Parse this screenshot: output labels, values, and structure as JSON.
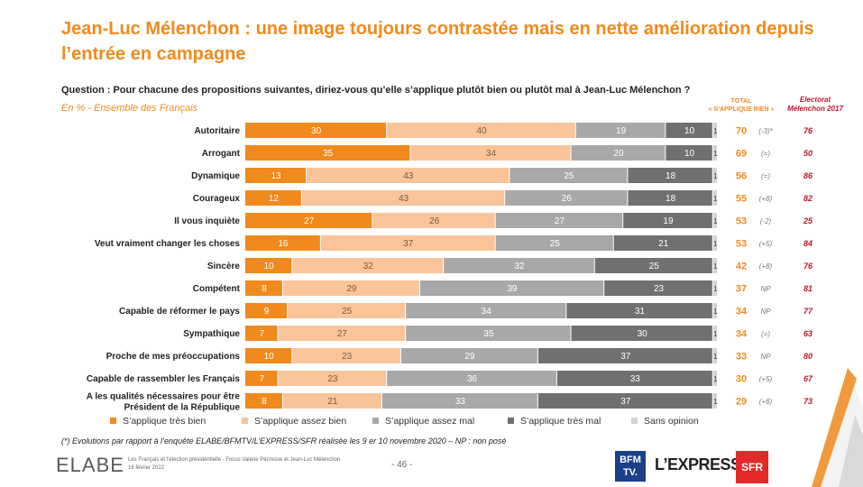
{
  "title": "Jean-Luc Mélenchon : une image toujours contrastée mais en nette amélioration depuis l’entrée en campagne",
  "question": "Question : Pour chacune des propositions suivantes, diriez-vous qu’elle s’applique plutôt bien ou plutôt mal à Jean-Luc Mélenchon ?",
  "subtitle": "En % - Ensemble des Français",
  "header_total_line1": "TOTAL",
  "header_total_line2": "« S’APPLIQUE BIEN »",
  "header_elect_line1": "Electorat",
  "header_elect_line2": "Mélenchon 2017",
  "footnote": "(*) Evolutions par rapport à l’enquête ELABE/BFMTV/L’EXPRESS/SFR réalisée les 9 er 10 novembre 2020 – NP : non posé",
  "footer": {
    "logo": "ELABE",
    "line1": "Les Français et l’élection présidentielle - Focus Valérie Pécresse et Jean-Luc Mélenchon",
    "line2": "16 février 2022",
    "page": "- 46 -",
    "bfm_line1": "BFM",
    "bfm_line2": "TV.",
    "express": "L’EXPRESS",
    "sfr": "SFR"
  },
  "colors": {
    "tres_bien": "#f08a1c",
    "assez_bien": "#f9c49a",
    "assez_mal": "#a8a8a8",
    "tres_mal": "#707070",
    "sans_opinion": "#d3d3d3",
    "accent": "#f08a1c",
    "elect": "#c0162b"
  },
  "chart_data": {
    "type": "bar",
    "orientation": "horizontal-stacked-100",
    "title": "Jean-Luc Mélenchon : une image toujours contrastée mais en nette amélioration depuis l’entrée en campagne",
    "unit": "%",
    "series_names": [
      "S’applique très bien",
      "S’applique assez bien",
      "S’applique assez mal",
      "S’applique très mal",
      "Sans opinion"
    ],
    "rows": [
      {
        "label": "Autoritaire",
        "values": [
          30,
          40,
          19,
          10,
          1
        ],
        "total": "70",
        "evol": "(-3)*",
        "elect": "76"
      },
      {
        "label": "Arrogant",
        "values": [
          35,
          34,
          20,
          10,
          1
        ],
        "total": "69",
        "evol": "(=)",
        "elect": "50"
      },
      {
        "label": "Dynamique",
        "values": [
          13,
          43,
          25,
          18,
          1
        ],
        "total": "56",
        "evol": "(=)",
        "elect": "86"
      },
      {
        "label": "Courageux",
        "values": [
          12,
          43,
          26,
          18,
          1
        ],
        "total": "55",
        "evol": "(+8)",
        "elect": "82"
      },
      {
        "label": "Il vous inquiète",
        "values": [
          27,
          26,
          27,
          19,
          1
        ],
        "total": "53",
        "evol": "(-2)",
        "elect": "25"
      },
      {
        "label": "Veut vraiment changer les choses",
        "values": [
          16,
          37,
          25,
          21,
          1
        ],
        "total": "53",
        "evol": "(+5)",
        "elect": "84"
      },
      {
        "label": "Sincère",
        "values": [
          10,
          32,
          32,
          25,
          1
        ],
        "total": "42",
        "evol": "(+8)",
        "elect": "76"
      },
      {
        "label": "Compétent",
        "values": [
          8,
          29,
          39,
          23,
          1
        ],
        "total": "37",
        "evol": "NP",
        "elect": "81"
      },
      {
        "label": "Capable de réformer le pays",
        "values": [
          9,
          25,
          34,
          31,
          1
        ],
        "total": "34",
        "evol": "NP",
        "elect": "77"
      },
      {
        "label": "Sympathique",
        "values": [
          7,
          27,
          35,
          30,
          1
        ],
        "total": "34",
        "evol": "(=)",
        "elect": "63"
      },
      {
        "label": "Proche de mes préoccupations",
        "values": [
          10,
          23,
          29,
          37,
          1
        ],
        "total": "33",
        "evol": "NP",
        "elect": "80"
      },
      {
        "label": "Capable de rassembler les Français",
        "values": [
          7,
          23,
          36,
          33,
          1
        ],
        "total": "30",
        "evol": "(+5)",
        "elect": "67"
      },
      {
        "label": "A les qualités nécessaires pour être Président de la République",
        "label_lines": [
          "A les qualités nécessaires pour être",
          "Président de la République"
        ],
        "values": [
          8,
          21,
          33,
          37,
          1
        ],
        "total": "29",
        "evol": "(+6)",
        "elect": "73"
      }
    ]
  }
}
